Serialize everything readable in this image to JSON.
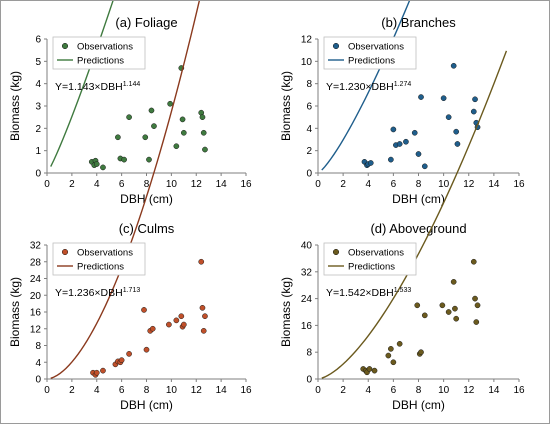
{
  "chart_data": [
    {
      "type": "scatter",
      "title": "(a) Foliage",
      "xlabel": "DBH (cm)",
      "ylabel": "Biomass (kg)",
      "xlim": [
        0,
        16
      ],
      "ylim": [
        0,
        6
      ],
      "xticks": [
        "0",
        "2",
        "4",
        "6",
        "8",
        "10",
        "12",
        "14",
        "16"
      ],
      "yticks": [
        "0",
        "1",
        "2",
        "3",
        "4",
        "5",
        "6"
      ],
      "legend": [
        "Observations",
        "Predictions"
      ],
      "legend_position": "top-left",
      "equation": {
        "prefix": "Y=1.143×DBH",
        "exponent": "1.144"
      },
      "marker_color": "#3f7a3f",
      "line_color": "#3f7a3f",
      "model": {
        "a": 1.143,
        "b": 1.144
      },
      "curve_x": [
        0.3,
        15
      ],
      "observations": {
        "x": [
          3.6,
          3.8,
          3.9,
          4.0,
          4.5,
          5.7,
          5.9,
          6.2,
          6.6,
          7.9,
          8.2,
          8.4,
          8.6,
          9.9,
          10.4,
          10.8,
          10.9,
          11.0,
          12.4,
          12.5,
          12.6,
          12.7
        ],
        "y": [
          0.5,
          0.35,
          0.55,
          0.4,
          0.25,
          1.6,
          0.65,
          0.6,
          2.5,
          1.6,
          0.6,
          2.8,
          2.1,
          3.1,
          1.2,
          4.7,
          2.4,
          1.8,
          2.7,
          2.5,
          1.8,
          1.05
        ]
      }
    },
    {
      "type": "scatter",
      "title": "(b) Branches",
      "xlabel": "DBH (cm)",
      "ylabel": "Biomass (kg)",
      "xlim": [
        0,
        16
      ],
      "ylim": [
        0,
        12
      ],
      "xticks": [
        "0",
        "2",
        "4",
        "6",
        "8",
        "10",
        "12",
        "14",
        "16"
      ],
      "yticks": [
        "0",
        "2",
        "4",
        "6",
        "8",
        "10",
        "12"
      ],
      "legend": [
        "Observations",
        "Predictions"
      ],
      "legend_position": "top-left",
      "equation": {
        "prefix": "Y=1.230×DBH",
        "exponent": "1.274"
      },
      "marker_color": "#1f5e8c",
      "line_color": "#1f5e8c",
      "model": {
        "a": 1.23,
        "b": 1.274
      },
      "curve_x": [
        0.3,
        15
      ],
      "observations": {
        "x": [
          3.7,
          3.9,
          4.0,
          4.2,
          5.8,
          6.0,
          6.2,
          6.5,
          7.0,
          7.7,
          8.0,
          8.2,
          8.5,
          10.0,
          10.4,
          10.8,
          11.0,
          11.1,
          12.4,
          12.5,
          12.6,
          12.7
        ],
        "y": [
          1.0,
          0.7,
          0.8,
          0.9,
          1.2,
          3.9,
          2.5,
          2.6,
          2.8,
          3.6,
          1.7,
          6.8,
          0.6,
          6.7,
          5.0,
          9.6,
          3.7,
          2.6,
          5.5,
          6.6,
          4.5,
          4.1
        ]
      }
    },
    {
      "type": "scatter",
      "title": "(c) Culms",
      "xlabel": "DBH (cm)",
      "ylabel": "Biomass (kg)",
      "xlim": [
        0,
        16
      ],
      "ylim": [
        0,
        32
      ],
      "xticks": [
        "0",
        "2",
        "4",
        "6",
        "8",
        "10",
        "12",
        "14",
        "16"
      ],
      "yticks": [
        "0",
        "4",
        "8",
        "12",
        "16",
        "20",
        "24",
        "28",
        "32"
      ],
      "legend": [
        "Observations",
        "Predictions"
      ],
      "legend_position": "top-left",
      "equation": {
        "prefix": "Y=1.236×DBH",
        "exponent": "1.713"
      },
      "marker_color": "#c0502a",
      "line_color": "#8b3a1e",
      "model": {
        "a": 1.236,
        "b": 1.713
      },
      "curve_x": [
        0.3,
        15
      ],
      "observations": {
        "x": [
          3.7,
          3.9,
          4.0,
          4.5,
          5.5,
          5.7,
          5.9,
          6.0,
          6.6,
          7.8,
          8.0,
          8.3,
          8.5,
          9.8,
          10.4,
          10.8,
          10.9,
          11.0,
          12.4,
          12.5,
          12.6,
          12.7
        ],
        "y": [
          1.5,
          1.0,
          1.5,
          2.0,
          3.5,
          4.2,
          4.0,
          4.5,
          6.0,
          16.5,
          7.0,
          11.5,
          12.0,
          13.0,
          14.0,
          15.0,
          12.5,
          13.0,
          28.0,
          17.0,
          11.5,
          15.0
        ]
      }
    },
    {
      "type": "scatter",
      "title": "(d) Aboveground",
      "xlabel": "DBH (cm)",
      "ylabel": "Biomass (kg)",
      "xlim": [
        0,
        16
      ],
      "ylim": [
        0,
        40
      ],
      "xticks": [
        "0",
        "2",
        "4",
        "6",
        "8",
        "10",
        "12",
        "14",
        "16"
      ],
      "yticks": [
        "0",
        "8",
        "16",
        "24",
        "32",
        "40"
      ],
      "legend": [
        "Observations",
        "Predictions"
      ],
      "legend_position": "top-left",
      "equation": {
        "prefix": "Y=1.542×DBH",
        "exponent": "1.533"
      },
      "marker_color": "#6b5a1e",
      "line_color": "#6b5a1e",
      "model": {
        "a": 1.542,
        "b": 1.533
      },
      "curve_x": [
        0.3,
        15
      ],
      "observations": {
        "x": [
          3.6,
          3.8,
          3.9,
          4.1,
          4.5,
          5.6,
          5.8,
          6.0,
          6.5,
          7.9,
          8.1,
          8.2,
          8.5,
          9.9,
          10.4,
          10.8,
          10.9,
          11.0,
          12.4,
          12.5,
          12.6,
          12.7
        ],
        "y": [
          3.0,
          2.5,
          2.0,
          3.0,
          2.5,
          7.0,
          9.0,
          5.0,
          10.5,
          22.0,
          7.5,
          8.0,
          19.0,
          22.0,
          20.0,
          29.0,
          21.0,
          18.0,
          35.0,
          24.0,
          17.0,
          22.0
        ]
      }
    }
  ]
}
